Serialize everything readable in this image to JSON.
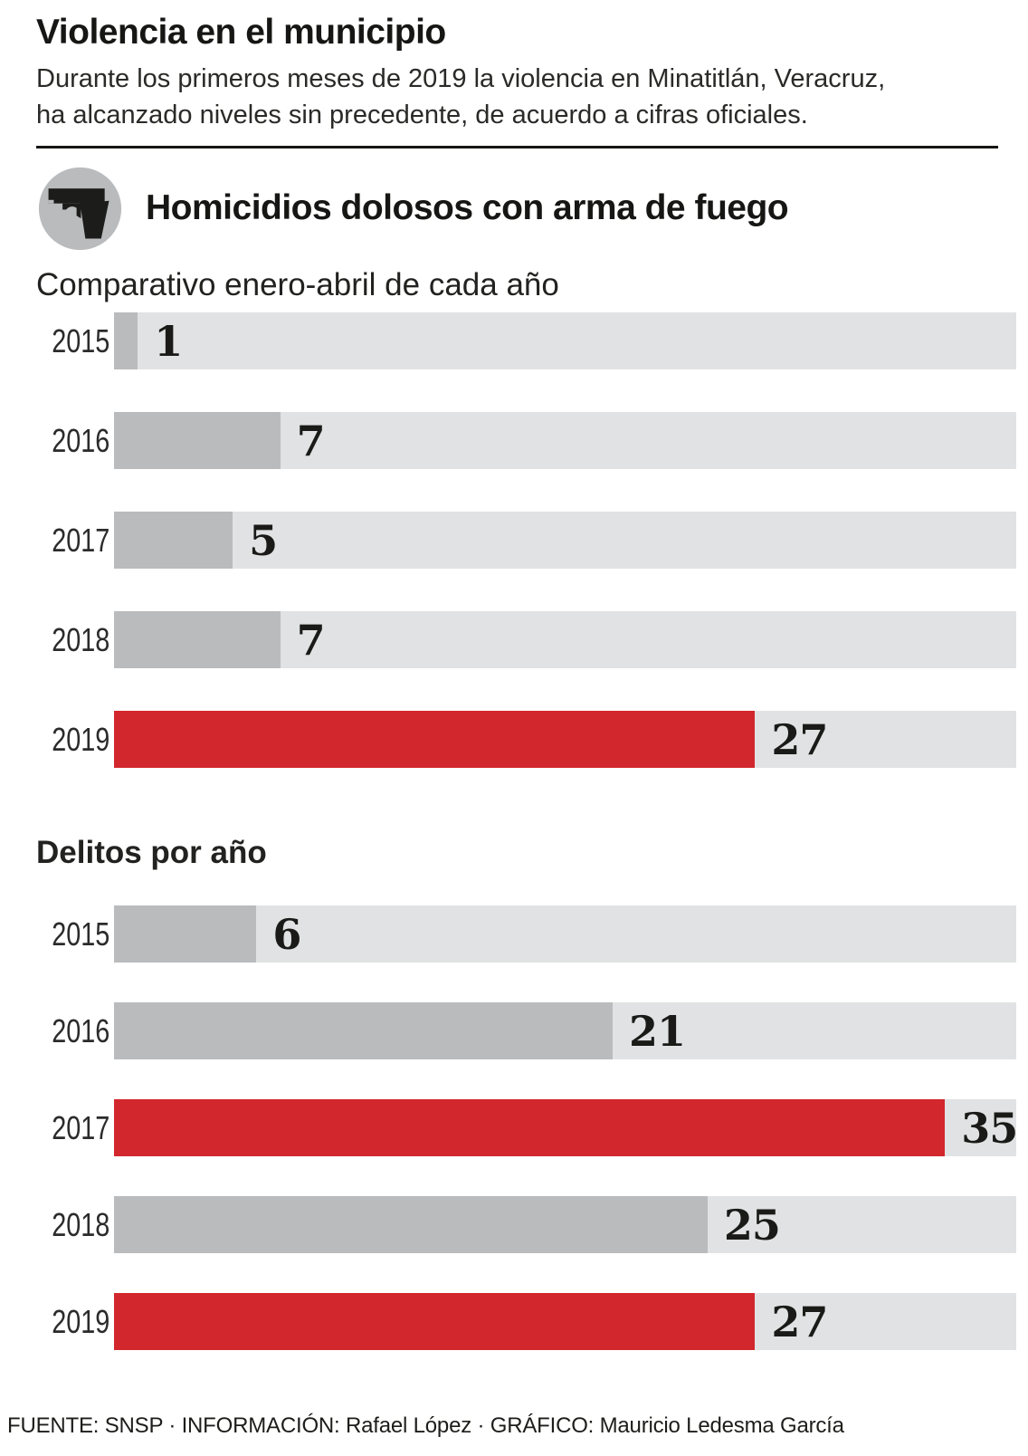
{
  "header": {
    "title": "Violencia en el municipio",
    "subtitle_lines": [
      "Durante los primeros meses de 2019 la violencia en Minatitlán, Veracruz,",
      "ha alcanzado niveles sin precedente, de acuerdo a cifras oficiales."
    ]
  },
  "section": {
    "icon": "gun-icon",
    "title": "Homicidios dolosos con arma de fuego"
  },
  "colors": {
    "highlight": "#d2272d",
    "bar": "#b9bbbd",
    "track": "#e1e2e3",
    "icon_bg": "#b9bbbd",
    "text": "#1d1d1b"
  },
  "chart_data": [
    {
      "type": "bar",
      "orientation": "horizontal",
      "title": "Comparativo enero-abril de cada año",
      "categories": [
        "2015",
        "2016",
        "2017",
        "2018",
        "2019"
      ],
      "values": [
        1,
        7,
        5,
        7,
        27
      ],
      "highlight_indices": [
        4
      ],
      "xlim": [
        0,
        38
      ],
      "grid": false,
      "legend": false
    },
    {
      "type": "bar",
      "orientation": "horizontal",
      "title": "Delitos por año",
      "categories": [
        "2015",
        "2016",
        "2017",
        "2018",
        "2019"
      ],
      "values": [
        6,
        21,
        35,
        25,
        27
      ],
      "highlight_indices": [
        2,
        4
      ],
      "xlim": [
        0,
        38
      ],
      "grid": false,
      "legend": false
    }
  ],
  "footer": {
    "credits": "FUENTE: SNSP · INFORMACIÓN: Rafael López · GRÁFICO: Mauricio Ledesma García"
  }
}
